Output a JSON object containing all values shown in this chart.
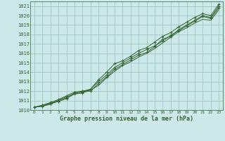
{
  "x": [
    0,
    1,
    2,
    3,
    4,
    5,
    6,
    7,
    8,
    9,
    10,
    11,
    12,
    13,
    14,
    15,
    16,
    17,
    18,
    19,
    20,
    21,
    22,
    23
  ],
  "line1": [
    1010.3,
    1010.5,
    1010.8,
    1011.1,
    1011.5,
    1011.9,
    1012.0,
    1012.2,
    1013.2,
    1014.0,
    1014.9,
    1015.2,
    1015.7,
    1016.3,
    1016.6,
    1017.2,
    1017.8,
    1018.2,
    1018.8,
    1019.3,
    1019.8,
    1020.2,
    1020.0,
    1021.2
  ],
  "line2": [
    1010.3,
    1010.5,
    1010.7,
    1011.0,
    1011.3,
    1011.8,
    1011.9,
    1012.0,
    1012.8,
    1013.5,
    1014.3,
    1014.8,
    1015.3,
    1015.8,
    1016.1,
    1016.7,
    1017.5,
    1017.8,
    1018.5,
    1019.0,
    1019.5,
    1020.0,
    1019.8,
    1021.0
  ],
  "line3": [
    1010.3,
    1010.4,
    1010.7,
    1010.9,
    1011.2,
    1011.7,
    1011.8,
    1012.2,
    1013.0,
    1013.7,
    1014.5,
    1015.0,
    1015.5,
    1016.0,
    1016.4,
    1016.8,
    1017.3,
    1017.9,
    1018.4,
    1018.9,
    1019.4,
    1019.9,
    1019.7,
    1020.8
  ],
  "line4": [
    1010.3,
    1010.4,
    1010.6,
    1011.0,
    1011.4,
    1011.7,
    1011.95,
    1012.1,
    1012.6,
    1013.4,
    1014.1,
    1014.7,
    1015.1,
    1015.6,
    1016.0,
    1016.5,
    1017.1,
    1017.7,
    1018.3,
    1018.7,
    1019.2,
    1019.6,
    1019.5,
    1020.6
  ],
  "bg_color": "#cce8e8",
  "grid_color": "#9bbfbf",
  "line_color": "#336633",
  "xlabel": "Graphe pression niveau de la mer (hPa)",
  "ylim": [
    1010,
    1021.5
  ],
  "xlim": [
    -0.5,
    23.5
  ],
  "yticks": [
    1010,
    1011,
    1012,
    1013,
    1014,
    1015,
    1016,
    1017,
    1018,
    1019,
    1020,
    1021
  ],
  "xticks": [
    0,
    1,
    2,
    3,
    4,
    5,
    6,
    7,
    8,
    9,
    10,
    11,
    12,
    13,
    14,
    15,
    16,
    17,
    18,
    19,
    20,
    21,
    22,
    23
  ]
}
